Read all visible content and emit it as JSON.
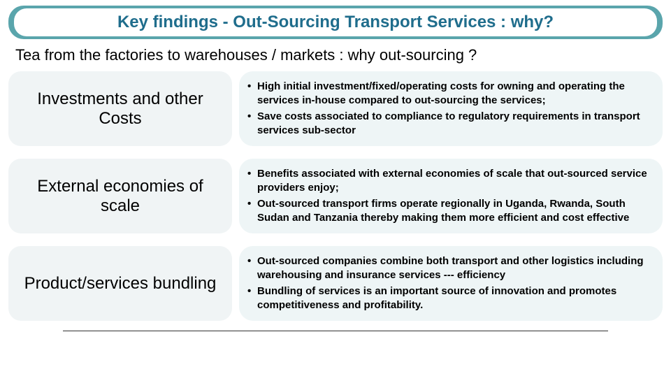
{
  "header": {
    "title": "Key findings - Out-Sourcing Transport Services : why?",
    "title_color": "#1f6d8c",
    "bar_color": "#5aa5ac"
  },
  "subhead": "Tea from the factories to warehouses / markets : why out-sourcing ?",
  "rows": [
    {
      "heading": "Investments and other Costs",
      "bullets": [
        "High initial investment/fixed/operating costs for owning and operating the services in-house compared to out-sourcing the services;",
        "Save costs associated to compliance to regulatory requirements in transport services sub-sector"
      ]
    },
    {
      "heading": "External economies of scale",
      "bullets": [
        "Benefits associated with external economies of scale that out-sourced service providers enjoy;",
        "Out-sourced transport firms operate regionally in Uganda, Rwanda, South Sudan and Tanzania thereby making them more efficient and cost effective"
      ]
    },
    {
      "heading": "Product/services bundling",
      "bullets": [
        "Out-sourced companies combine both transport and other logistics including warehousing and insurance services --- efficiency",
        "Bundling of services is an important source of innovation and promotes competitiveness and profitability."
      ]
    }
  ],
  "style": {
    "pill_left_bg": "#f0f4f5",
    "pill_right_bg": "#eef5f6",
    "heading_fontsize": 24,
    "bullet_fontsize": 15,
    "rule_color": "#333333"
  }
}
